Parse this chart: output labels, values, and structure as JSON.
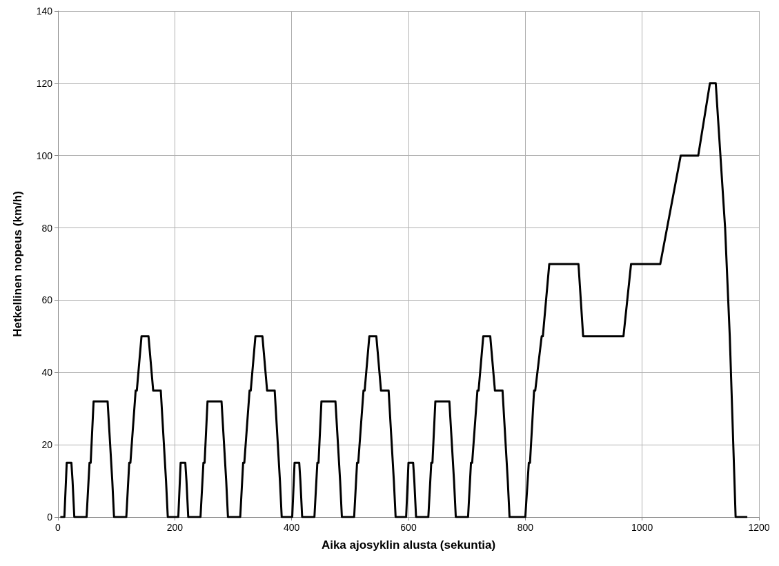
{
  "chart_data": {
    "type": "line",
    "xlabel": "Aika ajosyklin alusta (sekuntia)",
    "ylabel": "Hetkellinen nopeus (km/h)",
    "xlim": [
      0,
      1200
    ],
    "xticks": [
      0,
      200,
      400,
      600,
      800,
      1000,
      1200
    ],
    "ylim": [
      0,
      140
    ],
    "yticks": [
      0,
      20,
      40,
      60,
      80,
      100,
      120,
      140
    ],
    "grid": true,
    "marker": "none",
    "line_style": "solid",
    "series": [
      {
        "color": "#000000",
        "x": [
          4,
          11,
          15,
          23,
          25,
          28,
          49,
          54,
          56,
          61,
          85,
          93,
          96,
          117,
          122,
          124,
          133,
          135,
          143,
          155,
          163,
          176,
          185,
          188,
          195,
          206,
          210,
          218,
          220,
          223,
          244,
          249,
          251,
          256,
          280,
          288,
          291,
          312,
          317,
          319,
          328,
          330,
          338,
          350,
          358,
          371,
          380,
          383,
          390,
          401,
          405,
          413,
          415,
          418,
          439,
          444,
          446,
          451,
          475,
          483,
          486,
          507,
          512,
          514,
          523,
          525,
          533,
          545,
          553,
          566,
          575,
          578,
          585,
          596,
          600,
          608,
          610,
          613,
          634,
          639,
          641,
          646,
          670,
          678,
          681,
          702,
          707,
          709,
          718,
          720,
          728,
          740,
          748,
          761,
          770,
          773,
          780,
          800,
          806,
          808,
          815,
          817,
          828,
          830,
          841,
          891,
          899,
          968,
          981,
          1031,
          1066,
          1096,
          1116,
          1126,
          1142,
          1150,
          1160,
          1180
        ],
        "values": [
          0,
          0,
          15,
          15,
          10,
          0,
          0,
          15,
          15,
          32,
          32,
          10,
          0,
          0,
          15,
          15,
          35,
          35,
          50,
          50,
          35,
          35,
          10,
          0,
          0,
          0,
          15,
          15,
          10,
          0,
          0,
          15,
          15,
          32,
          32,
          10,
          0,
          0,
          15,
          15,
          35,
          35,
          50,
          50,
          35,
          35,
          10,
          0,
          0,
          0,
          15,
          15,
          10,
          0,
          0,
          15,
          15,
          32,
          32,
          10,
          0,
          0,
          15,
          15,
          35,
          35,
          50,
          50,
          35,
          35,
          10,
          0,
          0,
          0,
          15,
          15,
          10,
          0,
          0,
          15,
          15,
          32,
          32,
          10,
          0,
          0,
          15,
          15,
          35,
          35,
          50,
          50,
          35,
          35,
          10,
          0,
          0,
          0,
          15,
          15,
          35,
          35,
          50,
          50,
          70,
          70,
          50,
          50,
          70,
          70,
          100,
          100,
          120,
          120,
          80,
          50,
          0,
          0
        ]
      }
    ]
  }
}
